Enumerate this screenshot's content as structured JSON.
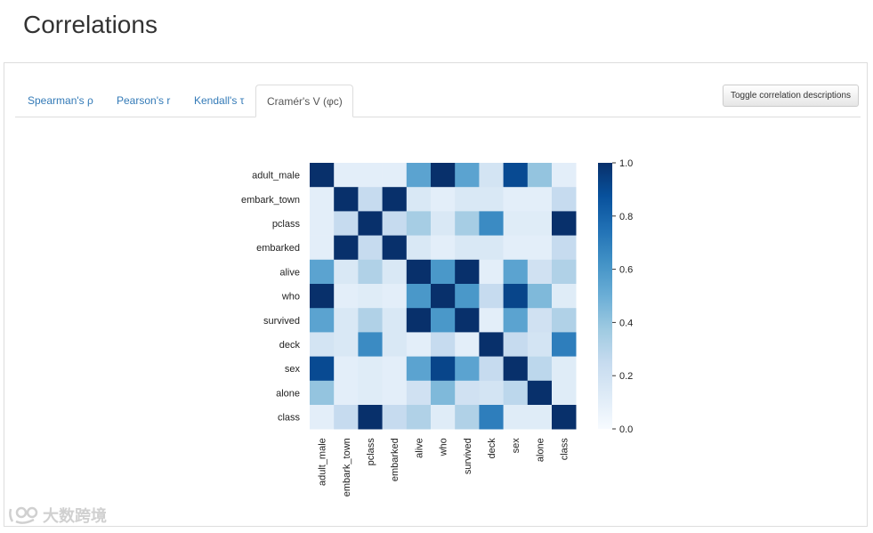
{
  "page": {
    "title": "Correlations"
  },
  "tabs": [
    {
      "label": "Spearman's ρ",
      "active": false
    },
    {
      "label": "Pearson's r",
      "active": false
    },
    {
      "label": "Kendall's τ",
      "active": false
    },
    {
      "label": "Cramér's V (φc)",
      "active": true
    }
  ],
  "toggle_button": {
    "label": "Toggle correlation descriptions"
  },
  "watermark": {
    "text": "大数跨境"
  },
  "chart_data": {
    "type": "heatmap",
    "colormap": "Blues",
    "labels": [
      "adult_male",
      "embark_town",
      "pclass",
      "embarked",
      "alive",
      "who",
      "survived",
      "deck",
      "sex",
      "alone",
      "class"
    ],
    "matrix": [
      [
        1.0,
        0.1,
        0.1,
        0.1,
        0.55,
        1.0,
        0.55,
        0.18,
        0.9,
        0.4,
        0.1
      ],
      [
        0.1,
        1.0,
        0.25,
        1.0,
        0.15,
        0.1,
        0.15,
        0.15,
        0.1,
        0.1,
        0.25
      ],
      [
        0.1,
        0.25,
        1.0,
        0.25,
        0.35,
        0.15,
        0.35,
        0.65,
        0.12,
        0.12,
        1.0
      ],
      [
        0.1,
        1.0,
        0.25,
        1.0,
        0.15,
        0.1,
        0.15,
        0.15,
        0.1,
        0.1,
        0.25
      ],
      [
        0.55,
        0.15,
        0.32,
        0.15,
        1.0,
        0.6,
        1.0,
        0.1,
        0.55,
        0.2,
        0.32
      ],
      [
        1.0,
        0.1,
        0.12,
        0.1,
        0.6,
        1.0,
        0.6,
        0.25,
        0.92,
        0.45,
        0.12
      ],
      [
        0.55,
        0.15,
        0.32,
        0.15,
        1.0,
        0.6,
        1.0,
        0.1,
        0.55,
        0.2,
        0.32
      ],
      [
        0.18,
        0.15,
        0.65,
        0.15,
        0.1,
        0.25,
        0.1,
        1.0,
        0.25,
        0.18,
        0.7
      ],
      [
        0.9,
        0.1,
        0.12,
        0.1,
        0.55,
        0.92,
        0.55,
        0.25,
        1.0,
        0.28,
        0.12
      ],
      [
        0.4,
        0.1,
        0.12,
        0.1,
        0.2,
        0.45,
        0.2,
        0.18,
        0.28,
        1.0,
        0.12
      ],
      [
        0.1,
        0.25,
        1.0,
        0.25,
        0.32,
        0.12,
        0.32,
        0.7,
        0.12,
        0.12,
        1.0
      ]
    ],
    "vmin": 0.0,
    "vmax": 1.0,
    "colorbar_ticks": [
      "0.0",
      "0.2",
      "0.4",
      "0.6",
      "0.8",
      "1.0"
    ]
  }
}
